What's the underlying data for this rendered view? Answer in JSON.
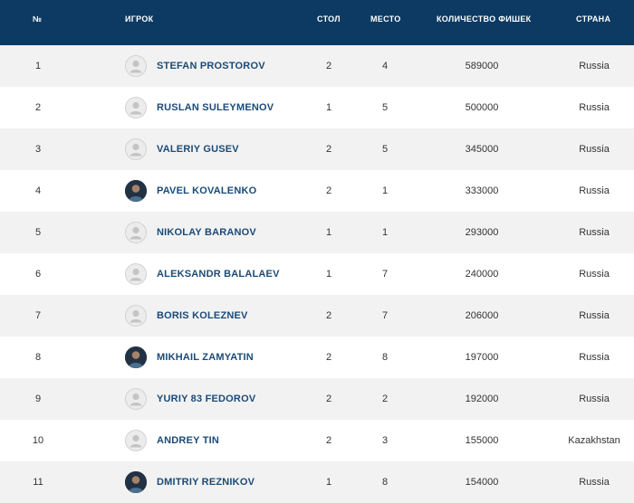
{
  "header": {
    "num": "№",
    "player": "Игрок",
    "table": "Стол",
    "seat": "Место",
    "chips": "Количество фишек",
    "country": "Страна"
  },
  "colors": {
    "header_bg": "#0c3a63",
    "player_name": "#1a4b78",
    "row_alt": "#f2f2f2"
  },
  "rows": [
    {
      "num": "1",
      "name": "STEFAN PROSTOROV",
      "table": "2",
      "seat": "4",
      "chips": "589000",
      "country": "Russia",
      "avatar": "default-avatar-icon"
    },
    {
      "num": "2",
      "name": "RUSLAN SULEYMENOV",
      "table": "1",
      "seat": "5",
      "chips": "500000",
      "country": "Russia",
      "avatar": "default-avatar-icon"
    },
    {
      "num": "3",
      "name": "VALERIY GUSEV",
      "table": "2",
      "seat": "5",
      "chips": "345000",
      "country": "Russia",
      "avatar": "default-avatar-icon"
    },
    {
      "num": "4",
      "name": "PAVEL KOVALENKO",
      "table": "2",
      "seat": "1",
      "chips": "333000",
      "country": "Russia",
      "avatar": "player-photo"
    },
    {
      "num": "5",
      "name": "NIKOLAY BARANOV",
      "table": "1",
      "seat": "1",
      "chips": "293000",
      "country": "Russia",
      "avatar": "default-avatar-icon"
    },
    {
      "num": "6",
      "name": "ALEKSANDR BALALAEV",
      "table": "1",
      "seat": "7",
      "chips": "240000",
      "country": "Russia",
      "avatar": "default-avatar-icon"
    },
    {
      "num": "7",
      "name": "BORIS KOLEZNEV",
      "table": "2",
      "seat": "7",
      "chips": "206000",
      "country": "Russia",
      "avatar": "default-avatar-icon"
    },
    {
      "num": "8",
      "name": "MIKHAIL ZAMYATIN",
      "table": "2",
      "seat": "8",
      "chips": "197000",
      "country": "Russia",
      "avatar": "player-photo"
    },
    {
      "num": "9",
      "name": "YURIY 83 FEDOROV",
      "table": "2",
      "seat": "2",
      "chips": "192000",
      "country": "Russia",
      "avatar": "default-avatar-icon"
    },
    {
      "num": "10",
      "name": "ANDREY TIN",
      "table": "2",
      "seat": "3",
      "chips": "155000",
      "country": "Kazakhstan",
      "avatar": "default-avatar-icon"
    },
    {
      "num": "11",
      "name": "DMITRIY REZNIKOV",
      "table": "1",
      "seat": "8",
      "chips": "154000",
      "country": "Russia",
      "avatar": "player-photo"
    }
  ]
}
